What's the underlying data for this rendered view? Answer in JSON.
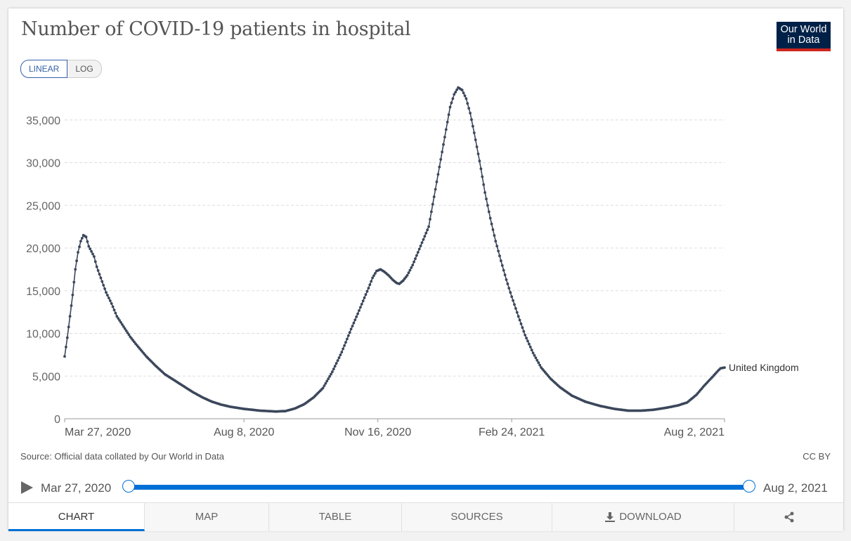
{
  "header": {
    "title": "Number of COVID-19 patients in hospital",
    "logo_line1": "Our World",
    "logo_line2": "in Data",
    "scale_linear": "LINEAR",
    "scale_log": "LOG"
  },
  "footer": {
    "source": "Source: Official data collated by Our World in Data",
    "license": "CC BY"
  },
  "timeline": {
    "start_label": "Mar 27, 2020",
    "end_label": "Aug 2, 2021"
  },
  "tabs": [
    {
      "label": "CHART",
      "active": true
    },
    {
      "label": "MAP"
    },
    {
      "label": "TABLE"
    },
    {
      "label": "SOURCES"
    },
    {
      "label": "DOWNLOAD",
      "icon": "download-icon"
    },
    {
      "label": "",
      "icon": "share-icon"
    }
  ],
  "colors": {
    "series": "#3b475b",
    "accent": "#0070d6",
    "logo_bg": "#002147",
    "logo_stripe": "#ce261e"
  },
  "chart_data": {
    "type": "line",
    "title": "Number of COVID-19 patients in hospital",
    "scale": "linear",
    "xlabel": "",
    "ylabel": "",
    "ylim": [
      0,
      40000
    ],
    "y_ticks": [
      0,
      5000,
      10000,
      15000,
      20000,
      25000,
      30000,
      35000
    ],
    "y_tick_labels": [
      "0",
      "5,000",
      "10,000",
      "15,000",
      "20,000",
      "25,000",
      "30,000",
      "35,000"
    ],
    "x_range": [
      "2020-03-27",
      "2021-08-02"
    ],
    "x_ticks": [
      "2020-03-27",
      "2020-08-08",
      "2020-11-16",
      "2021-02-24",
      "2021-08-02"
    ],
    "x_tick_labels": [
      "Mar 27, 2020",
      "Aug 8, 2020",
      "Nov 16, 2020",
      "Feb 24, 2021",
      "Aug 2, 2021"
    ],
    "grid": "horizontal",
    "series": [
      {
        "name": "United Kingdom",
        "color": "#3b475b",
        "points": [
          [
            "2020-03-27",
            7300
          ],
          [
            "2020-03-29",
            9500
          ],
          [
            "2020-03-31",
            12000
          ],
          [
            "2020-04-02",
            14500
          ],
          [
            "2020-04-04",
            17500
          ],
          [
            "2020-04-06",
            19500
          ],
          [
            "2020-04-08",
            20800
          ],
          [
            "2020-04-10",
            21500
          ],
          [
            "2020-04-12",
            21300
          ],
          [
            "2020-04-14",
            20200
          ],
          [
            "2020-04-16",
            19600
          ],
          [
            "2020-04-18",
            19000
          ],
          [
            "2020-04-20",
            17800
          ],
          [
            "2020-04-23",
            16500
          ],
          [
            "2020-04-27",
            14800
          ],
          [
            "2020-05-01",
            13500
          ],
          [
            "2020-05-05",
            12000
          ],
          [
            "2020-05-10",
            10800
          ],
          [
            "2020-05-15",
            9600
          ],
          [
            "2020-05-20",
            8600
          ],
          [
            "2020-05-27",
            7300
          ],
          [
            "2020-06-03",
            6200
          ],
          [
            "2020-06-10",
            5200
          ],
          [
            "2020-06-17",
            4500
          ],
          [
            "2020-06-24",
            3800
          ],
          [
            "2020-07-01",
            3100
          ],
          [
            "2020-07-08",
            2500
          ],
          [
            "2020-07-15",
            2000
          ],
          [
            "2020-07-22",
            1650
          ],
          [
            "2020-07-29",
            1400
          ],
          [
            "2020-08-08",
            1150
          ],
          [
            "2020-08-20",
            950
          ],
          [
            "2020-09-01",
            850
          ],
          [
            "2020-09-08",
            900
          ],
          [
            "2020-09-15",
            1200
          ],
          [
            "2020-09-22",
            1700
          ],
          [
            "2020-09-29",
            2500
          ],
          [
            "2020-10-06",
            3600
          ],
          [
            "2020-10-13",
            5500
          ],
          [
            "2020-10-20",
            7800
          ],
          [
            "2020-10-27",
            10500
          ],
          [
            "2020-11-01",
            12300
          ],
          [
            "2020-11-05",
            13800
          ],
          [
            "2020-11-09",
            15300
          ],
          [
            "2020-11-12",
            16500
          ],
          [
            "2020-11-15",
            17300
          ],
          [
            "2020-11-18",
            17500
          ],
          [
            "2020-11-21",
            17200
          ],
          [
            "2020-11-24",
            16800
          ],
          [
            "2020-11-27",
            16300
          ],
          [
            "2020-11-30",
            15900
          ],
          [
            "2020-12-02",
            15800
          ],
          [
            "2020-12-05",
            16200
          ],
          [
            "2020-12-08",
            16800
          ],
          [
            "2020-12-12",
            18000
          ],
          [
            "2020-12-16",
            19500
          ],
          [
            "2020-12-20",
            21000
          ],
          [
            "2020-12-24",
            22500
          ],
          [
            "2020-12-28",
            26000
          ],
          [
            "2021-01-01",
            29500
          ],
          [
            "2021-01-05",
            33000
          ],
          [
            "2021-01-09",
            36500
          ],
          [
            "2021-01-12",
            38000
          ],
          [
            "2021-01-15",
            38800
          ],
          [
            "2021-01-18",
            38500
          ],
          [
            "2021-01-21",
            37500
          ],
          [
            "2021-01-24",
            35800
          ],
          [
            "2021-01-27",
            33500
          ],
          [
            "2021-01-31",
            30200
          ],
          [
            "2021-02-04",
            26500
          ],
          [
            "2021-02-08",
            23500
          ],
          [
            "2021-02-12",
            20800
          ],
          [
            "2021-02-16",
            18500
          ],
          [
            "2021-02-20",
            16300
          ],
          [
            "2021-02-24",
            14300
          ],
          [
            "2021-03-01",
            12000
          ],
          [
            "2021-03-06",
            9800
          ],
          [
            "2021-03-12",
            7700
          ],
          [
            "2021-03-18",
            6000
          ],
          [
            "2021-03-25",
            4700
          ],
          [
            "2021-04-01",
            3700
          ],
          [
            "2021-04-10",
            2700
          ],
          [
            "2021-04-20",
            2000
          ],
          [
            "2021-05-01",
            1500
          ],
          [
            "2021-05-12",
            1150
          ],
          [
            "2021-05-22",
            950
          ],
          [
            "2021-06-01",
            950
          ],
          [
            "2021-06-10",
            1050
          ],
          [
            "2021-06-20",
            1300
          ],
          [
            "2021-06-28",
            1550
          ],
          [
            "2021-07-05",
            1900
          ],
          [
            "2021-07-12",
            2800
          ],
          [
            "2021-07-18",
            3900
          ],
          [
            "2021-07-24",
            4900
          ],
          [
            "2021-07-28",
            5600
          ],
          [
            "2021-07-30",
            5900
          ],
          [
            "2021-08-02",
            6000
          ]
        ]
      }
    ]
  }
}
